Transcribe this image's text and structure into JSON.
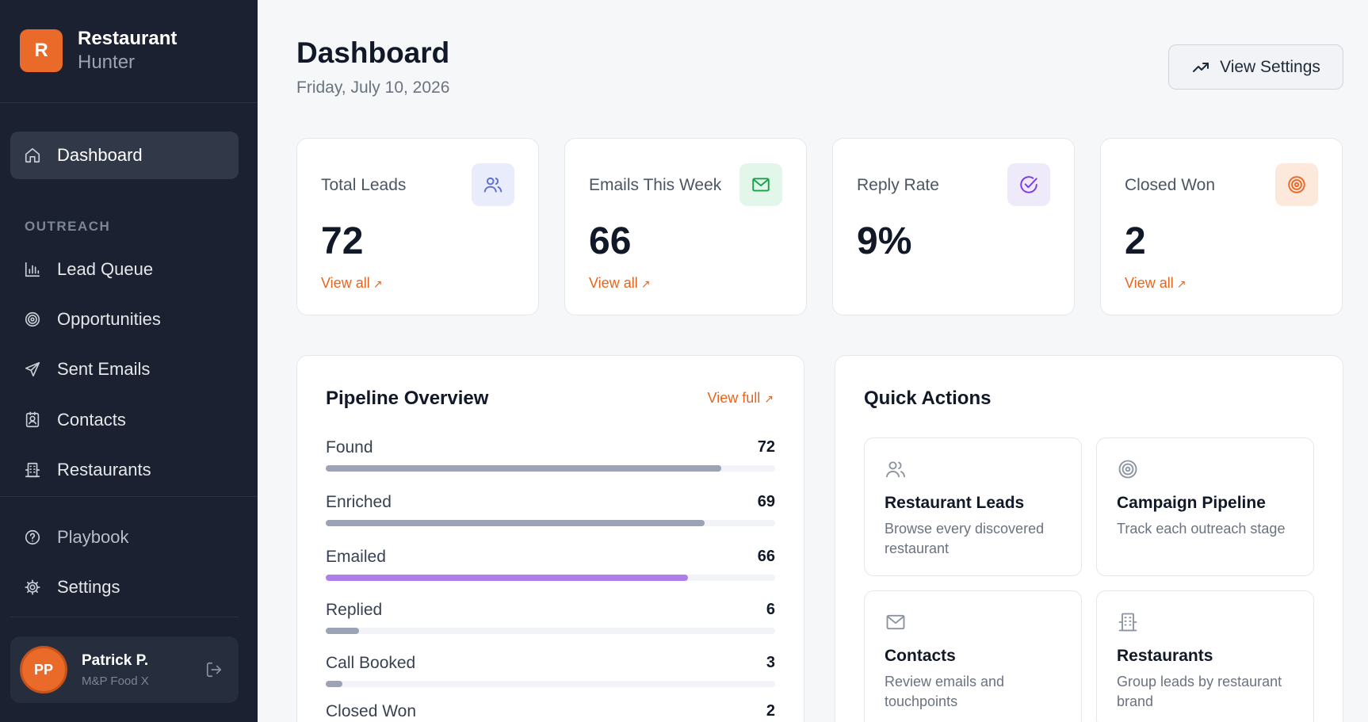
{
  "brand": {
    "logo_letter": "R",
    "name": "Restaurant",
    "subtitle": "Hunter"
  },
  "sidebar": {
    "dashboard": {
      "label": "Dashboard",
      "icon": "home-icon"
    },
    "section_label": "OUTREACH",
    "items": [
      {
        "label": "Lead Queue",
        "icon": "bar-chart-icon"
      },
      {
        "label": "Opportunities",
        "icon": "target-icon"
      },
      {
        "label": "Sent Emails",
        "icon": "send-icon"
      },
      {
        "label": "Contacts",
        "icon": "contact-card-icon"
      },
      {
        "label": "Restaurants",
        "icon": "building-icon"
      }
    ],
    "bottom_items": [
      {
        "label": "Playbook",
        "icon": "help-circle-icon"
      },
      {
        "label": "Settings",
        "icon": "gear-icon"
      }
    ],
    "user": {
      "initials": "PP",
      "name": "Patrick P.",
      "org": "M&P Food X"
    }
  },
  "header": {
    "title": "Dashboard",
    "date": "Friday, July 10, 2026",
    "settings_button": "View Settings"
  },
  "stats": [
    {
      "label": "Total Leads",
      "value": "72",
      "link": "View all",
      "icon": "users-icon",
      "icon_color": "#5b6fd6",
      "icon_bg": "#e8ecfb"
    },
    {
      "label": "Emails This Week",
      "value": "66",
      "link": "View all",
      "icon": "mail-icon",
      "icon_color": "#16a34a",
      "icon_bg": "#e3f6ea"
    },
    {
      "label": "Reply Rate",
      "value": "9%",
      "link": "",
      "icon": "check-circle-icon",
      "icon_color": "#7c3aed",
      "icon_bg": "#eeeaf9"
    },
    {
      "label": "Closed Won",
      "value": "2",
      "link": "View all",
      "icon": "target-icon",
      "icon_color": "#ea6a2a",
      "icon_bg": "#fde9dc"
    }
  ],
  "pipeline": {
    "title": "Pipeline Overview",
    "view_full": "View full",
    "max": 72,
    "stages": [
      {
        "label": "Found",
        "value": 72,
        "color": "#9ca3b4"
      },
      {
        "label": "Enriched",
        "value": 69,
        "color": "#9ca3b4"
      },
      {
        "label": "Emailed",
        "value": 66,
        "color": "#b07ee8"
      },
      {
        "label": "Replied",
        "value": 6,
        "color": "#9ca3b4"
      },
      {
        "label": "Call Booked",
        "value": 3,
        "color": "#9ca3b4"
      },
      {
        "label": "Closed Won",
        "value": 2,
        "color": "#9ca3b4"
      }
    ]
  },
  "quick_actions": {
    "title": "Quick Actions",
    "items": [
      {
        "title": "Restaurant Leads",
        "desc": "Browse every discovered restaurant",
        "icon": "users-icon"
      },
      {
        "title": "Campaign Pipeline",
        "desc": "Track each outreach stage",
        "icon": "target-icon"
      },
      {
        "title": "Contacts",
        "desc": "Review emails and touchpoints",
        "icon": "mail-icon"
      },
      {
        "title": "Restaurants",
        "desc": "Group leads by restaurant brand",
        "icon": "building-icon"
      }
    ]
  },
  "colors": {
    "accent": "#ea6a2a",
    "sidebar_bg": "#1b2130",
    "link": "#e8641e"
  }
}
